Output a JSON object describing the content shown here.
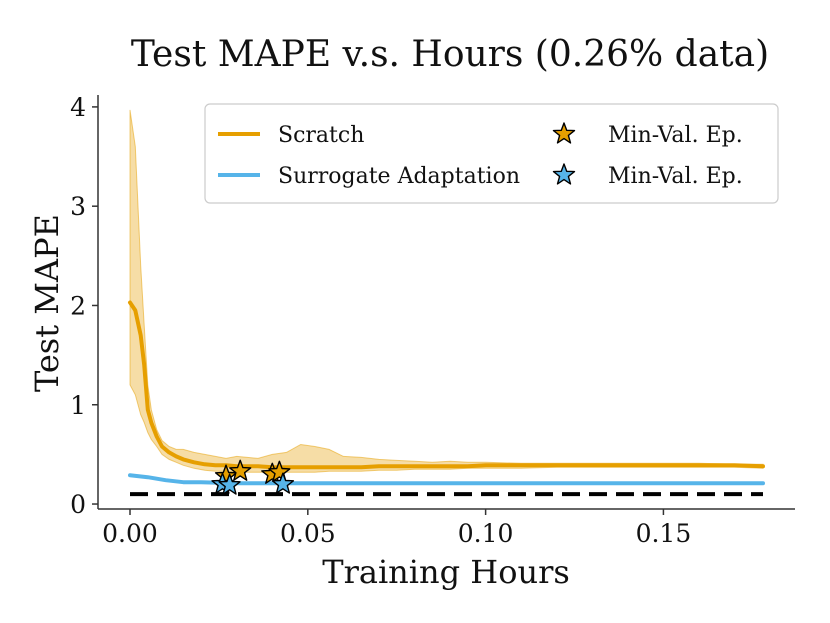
{
  "chart_data": {
    "type": "line",
    "title": "Test MAPE v.s. Hours (0.26% data)",
    "xlabel": "Training Hours",
    "ylabel": "Test MAPE",
    "xlim": [
      -0.009,
      0.187
    ],
    "ylim": [
      -0.05,
      4.12
    ],
    "xticks": [
      0.0,
      0.05,
      0.1,
      0.15
    ],
    "xtick_labels": [
      "0.00",
      "0.05",
      "0.10",
      "0.15"
    ],
    "yticks": [
      0,
      1,
      2,
      3,
      4
    ],
    "ytick_labels": [
      "0",
      "1",
      "2",
      "3",
      "4"
    ],
    "baseline": {
      "y": 0.1,
      "style": "dashed",
      "color": "#000000"
    },
    "series": [
      {
        "name": "Scratch",
        "color": "#E69F00",
        "x": [
          0.0,
          0.0015,
          0.003,
          0.004,
          0.005,
          0.006,
          0.0075,
          0.009,
          0.011,
          0.013,
          0.015,
          0.018,
          0.021,
          0.024,
          0.027,
          0.03,
          0.033,
          0.036,
          0.04,
          0.044,
          0.048,
          0.052,
          0.056,
          0.06,
          0.065,
          0.07,
          0.075,
          0.08,
          0.085,
          0.09,
          0.095,
          0.1,
          0.11,
          0.12,
          0.13,
          0.14,
          0.15,
          0.16,
          0.17,
          0.178
        ],
        "values": [
          2.03,
          1.95,
          1.7,
          1.4,
          0.95,
          0.82,
          0.68,
          0.58,
          0.52,
          0.48,
          0.45,
          0.42,
          0.4,
          0.39,
          0.39,
          0.38,
          0.38,
          0.38,
          0.37,
          0.37,
          0.37,
          0.37,
          0.37,
          0.37,
          0.37,
          0.38,
          0.38,
          0.38,
          0.38,
          0.38,
          0.38,
          0.39,
          0.39,
          0.39,
          0.39,
          0.39,
          0.39,
          0.39,
          0.39,
          0.38
        ],
        "upper": [
          3.97,
          3.6,
          2.4,
          1.8,
          1.2,
          0.95,
          0.75,
          0.64,
          0.58,
          0.55,
          0.55,
          0.52,
          0.5,
          0.48,
          0.46,
          0.48,
          0.47,
          0.46,
          0.5,
          0.52,
          0.6,
          0.58,
          0.55,
          0.48,
          0.47,
          0.45,
          0.44,
          0.43,
          0.42,
          0.43,
          0.42,
          0.42,
          0.41,
          0.41,
          0.41,
          0.41,
          0.41,
          0.41,
          0.4,
          0.4
        ],
        "lower": [
          1.2,
          1.1,
          0.9,
          0.82,
          0.72,
          0.65,
          0.58,
          0.5,
          0.45,
          0.42,
          0.39,
          0.36,
          0.34,
          0.33,
          0.33,
          0.32,
          0.32,
          0.32,
          0.32,
          0.32,
          0.32,
          0.32,
          0.33,
          0.33,
          0.33,
          0.34,
          0.34,
          0.35,
          0.35,
          0.35,
          0.36,
          0.36,
          0.36,
          0.37,
          0.37,
          0.37,
          0.37,
          0.37,
          0.37,
          0.36
        ],
        "min_val_epochs": [
          [
            0.027,
            0.28
          ],
          [
            0.031,
            0.33
          ],
          [
            0.04,
            0.3
          ],
          [
            0.042,
            0.32
          ]
        ]
      },
      {
        "name": "Surrogate Adaptation",
        "color": "#56B4E9",
        "x": [
          0.0,
          0.005,
          0.01,
          0.015,
          0.02,
          0.03,
          0.04,
          0.06,
          0.08,
          0.1,
          0.12,
          0.14,
          0.16,
          0.178
        ],
        "values": [
          0.29,
          0.27,
          0.24,
          0.22,
          0.22,
          0.21,
          0.21,
          0.21,
          0.21,
          0.21,
          0.21,
          0.21,
          0.21,
          0.21
        ],
        "min_val_epochs": [
          [
            0.026,
            0.2
          ],
          [
            0.028,
            0.19
          ],
          [
            0.043,
            0.2
          ]
        ]
      }
    ],
    "legend": {
      "position": "top-right",
      "entries": [
        {
          "label": "Scratch",
          "kind": "line",
          "color": "#E69F00"
        },
        {
          "label": "Min-Val. Ep.",
          "kind": "star",
          "color": "#E69F00"
        },
        {
          "label": "Surrogate Adaptation",
          "kind": "line",
          "color": "#56B4E9"
        },
        {
          "label": "Min-Val. Ep.",
          "kind": "star",
          "color": "#56B4E9"
        }
      ]
    }
  }
}
